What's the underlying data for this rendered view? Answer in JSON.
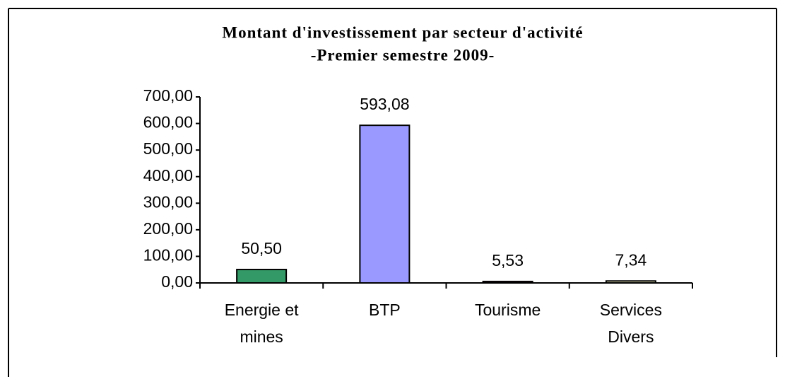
{
  "chart_data": {
    "type": "bar",
    "title": "Montant d'investissement par secteur d'activité",
    "subtitle": "-Premier semestre 2009-",
    "categories": [
      [
        "Energie et",
        "mines"
      ],
      [
        "BTP"
      ],
      [
        "Tourisme"
      ],
      [
        "Services",
        "Divers"
      ]
    ],
    "values": [
      50.5,
      593.08,
      5.53,
      7.34
    ],
    "value_labels": [
      "50,50",
      "593,08",
      "5,53",
      "7,34"
    ],
    "colors": [
      "#339966",
      "#9999ff",
      "#993366",
      "#ffffcc"
    ],
    "ylim": [
      0,
      700
    ],
    "yticks": [
      {
        "value": 0,
        "label": "0,00"
      },
      {
        "value": 100,
        "label": "100,00"
      },
      {
        "value": 200,
        "label": "200,00"
      },
      {
        "value": 300,
        "label": "300,00"
      },
      {
        "value": 400,
        "label": "400,00"
      },
      {
        "value": 500,
        "label": "500,00"
      },
      {
        "value": 600,
        "label": "600,00"
      },
      {
        "value": 700,
        "label": "700,00"
      }
    ],
    "grid": false
  }
}
